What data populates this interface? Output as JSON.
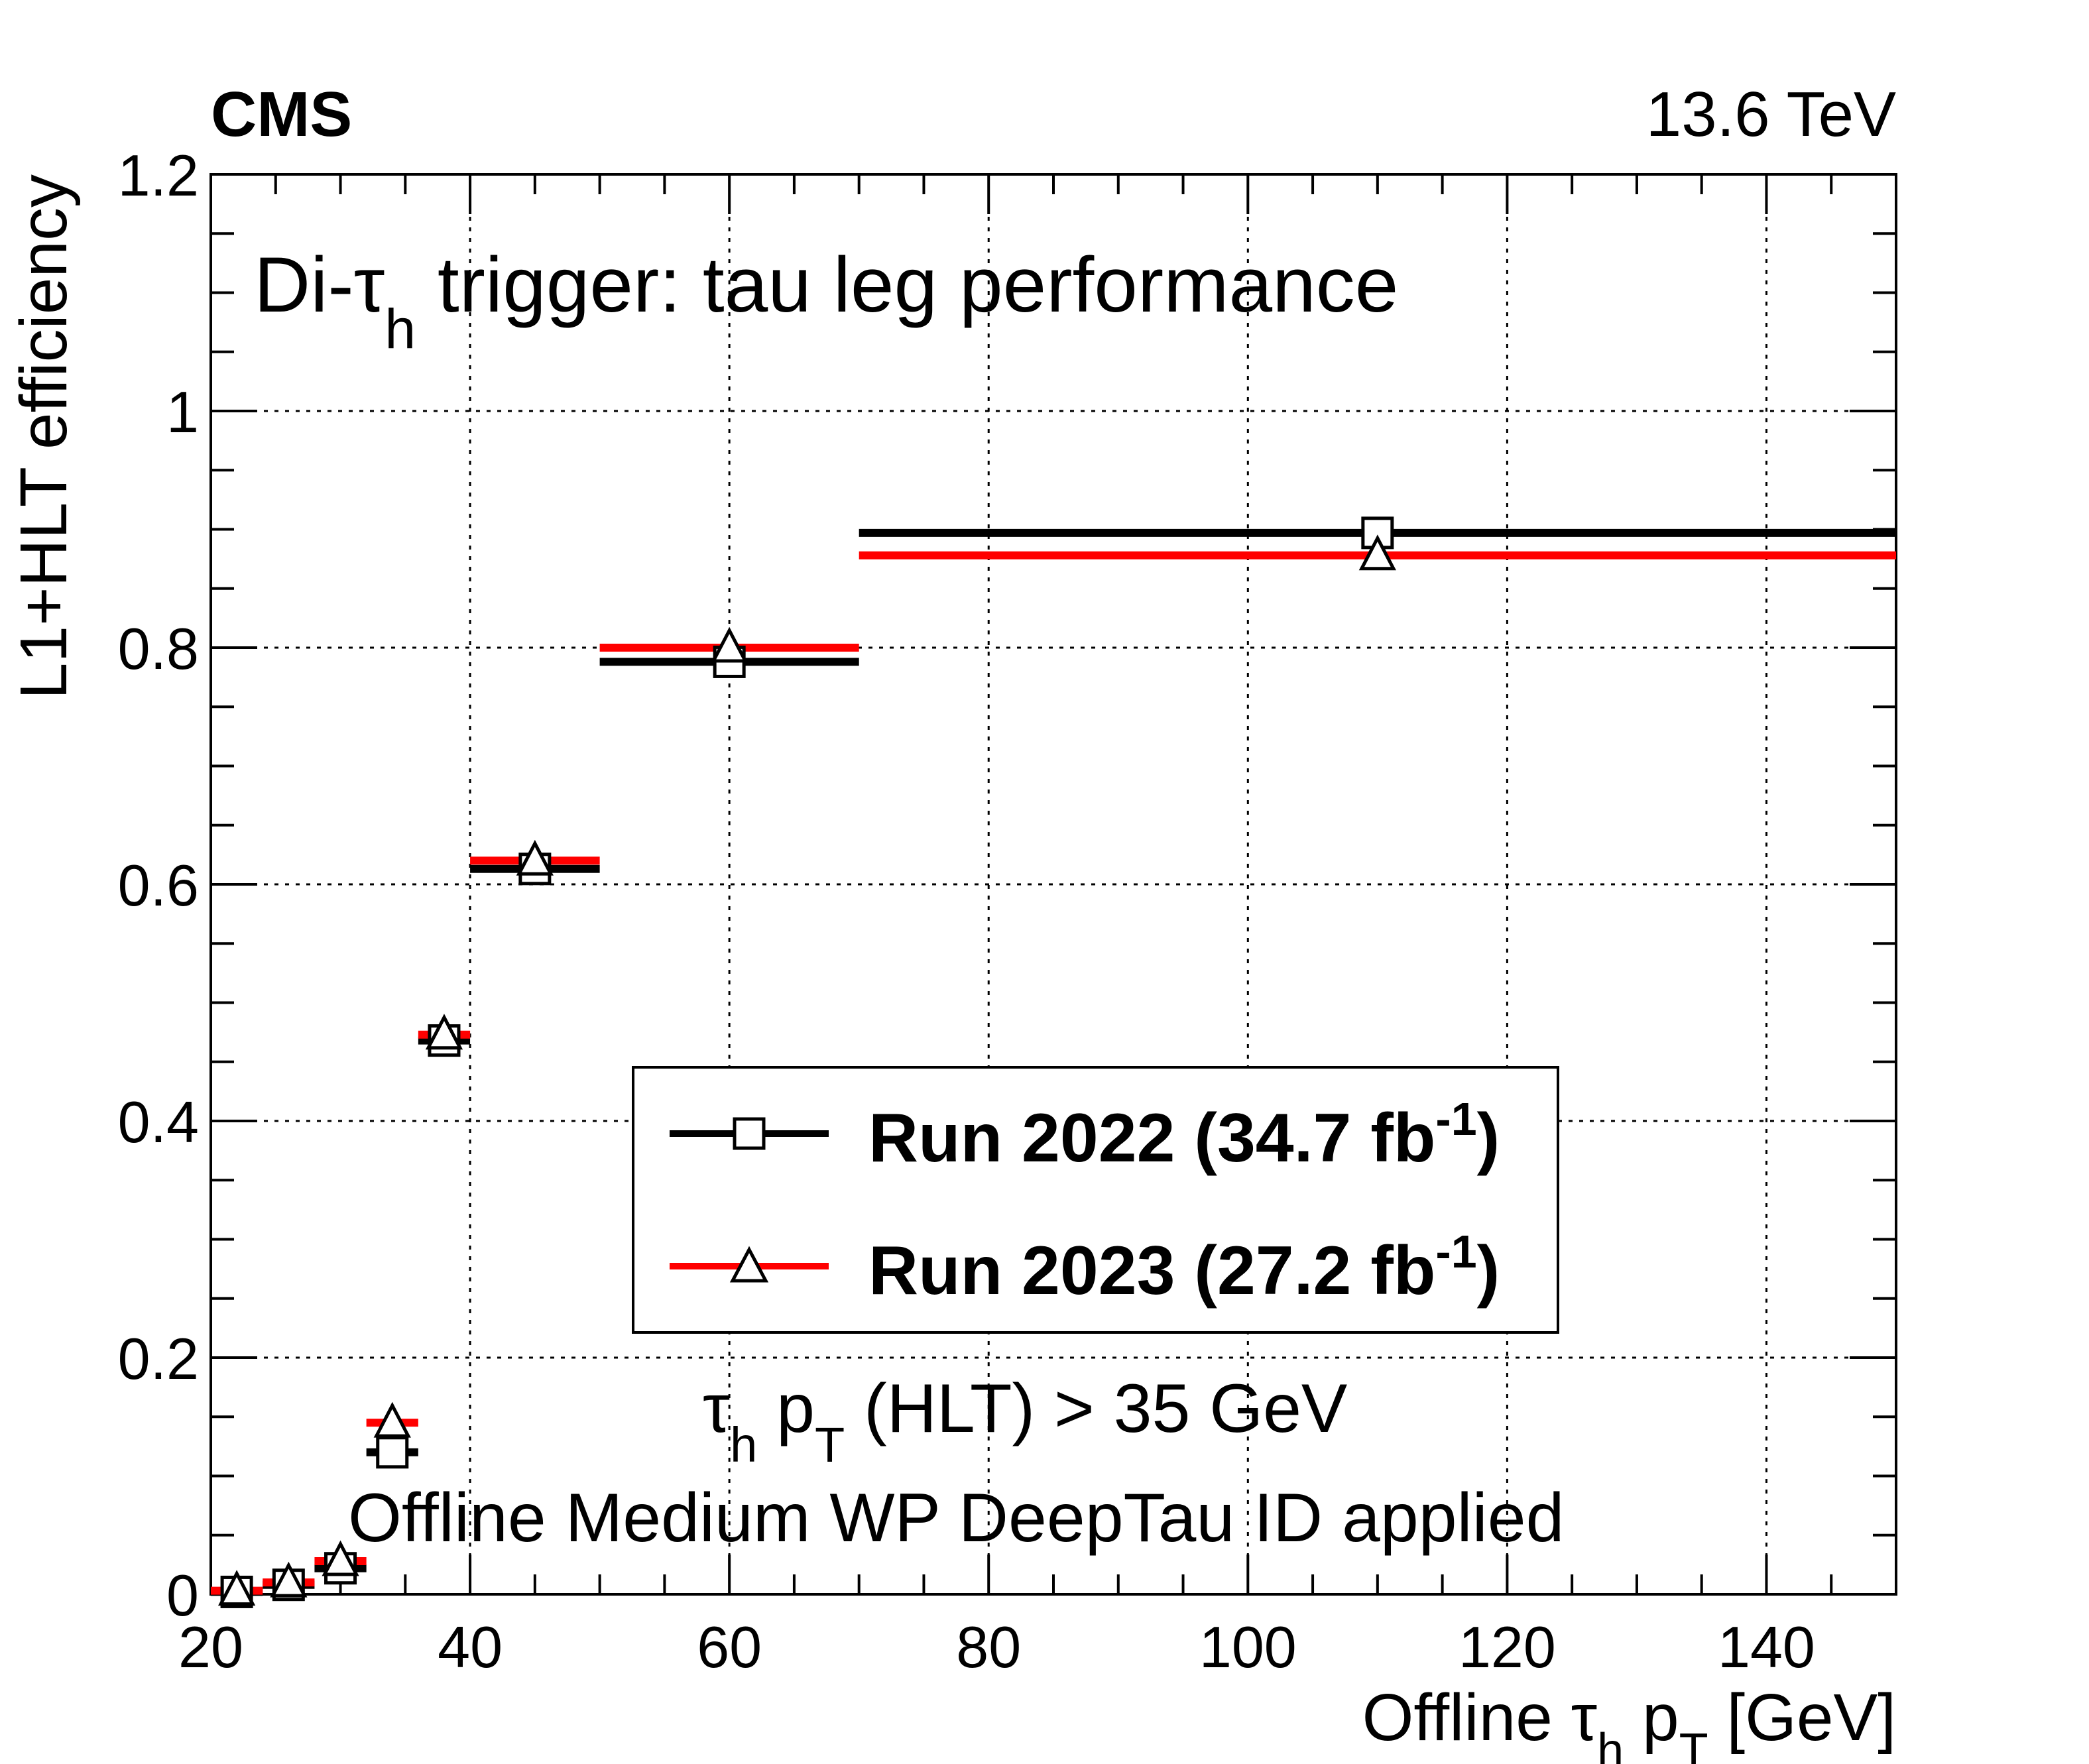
{
  "header": {
    "experiment": "CMS",
    "energy": "13.6 TeV"
  },
  "annotations": {
    "title_prefix": "Di-τ",
    "title_sub": "h",
    "title_suffix": " trigger: tau leg performance",
    "cut_tau": "τ",
    "cut_h": "h",
    "cut_p": " p",
    "cut_T": "T",
    "cut_rest": " (HLT) > 35 GeV",
    "id_note": "Offline Medium WP DeepTau ID applied"
  },
  "axes": {
    "ylabel": "L1+HLT efficiency",
    "xlabel_prefix": "Offline τ",
    "xlabel_h": "h",
    "xlabel_p": " p",
    "xlabel_T": "T",
    "xlabel_suffix": " [GeV]"
  },
  "legend": {
    "entries": [
      {
        "label": "Run 2022 (34.7 fb",
        "sup": "-1",
        "close": ")"
      },
      {
        "label": "Run 2023 (27.2 fb",
        "sup": "-1",
        "close": ")"
      }
    ]
  },
  "chart_data": {
    "type": "scatter",
    "xlim": [
      20,
      150
    ],
    "ylim": [
      0,
      1.2
    ],
    "xticks": [
      20,
      40,
      60,
      80,
      100,
      120,
      140
    ],
    "yticks": [
      0,
      0.2,
      0.4,
      0.6,
      0.8,
      1,
      1.2
    ],
    "ytick_labels": [
      "0",
      "0.2",
      "0.4",
      "0.6",
      "0.8",
      "1",
      "1.2"
    ],
    "grid": true,
    "legend_position": "center-right",
    "series": [
      {
        "name": "Run 2022 (34.7 fb-1)",
        "color": "#000000",
        "marker": "square",
        "x": [
          22,
          26,
          30,
          34,
          38,
          45,
          60,
          110
        ],
        "xlow": [
          20,
          24,
          28,
          32,
          36,
          40,
          50,
          70
        ],
        "xhigh": [
          24,
          28,
          32,
          36,
          40,
          50,
          70,
          150
        ],
        "y": [
          0.002,
          0.008,
          0.022,
          0.12,
          0.468,
          0.613,
          0.788,
          0.897
        ]
      },
      {
        "name": "Run 2023 (27.2 fb-1)",
        "color": "#ff0000",
        "marker": "triangle",
        "x": [
          22,
          26,
          30,
          34,
          38,
          45,
          60,
          110
        ],
        "xlow": [
          20,
          24,
          28,
          32,
          36,
          40,
          50,
          70
        ],
        "xhigh": [
          24,
          28,
          32,
          36,
          40,
          50,
          70,
          150
        ],
        "y": [
          0.003,
          0.01,
          0.028,
          0.145,
          0.473,
          0.62,
          0.8,
          0.878
        ]
      }
    ]
  }
}
